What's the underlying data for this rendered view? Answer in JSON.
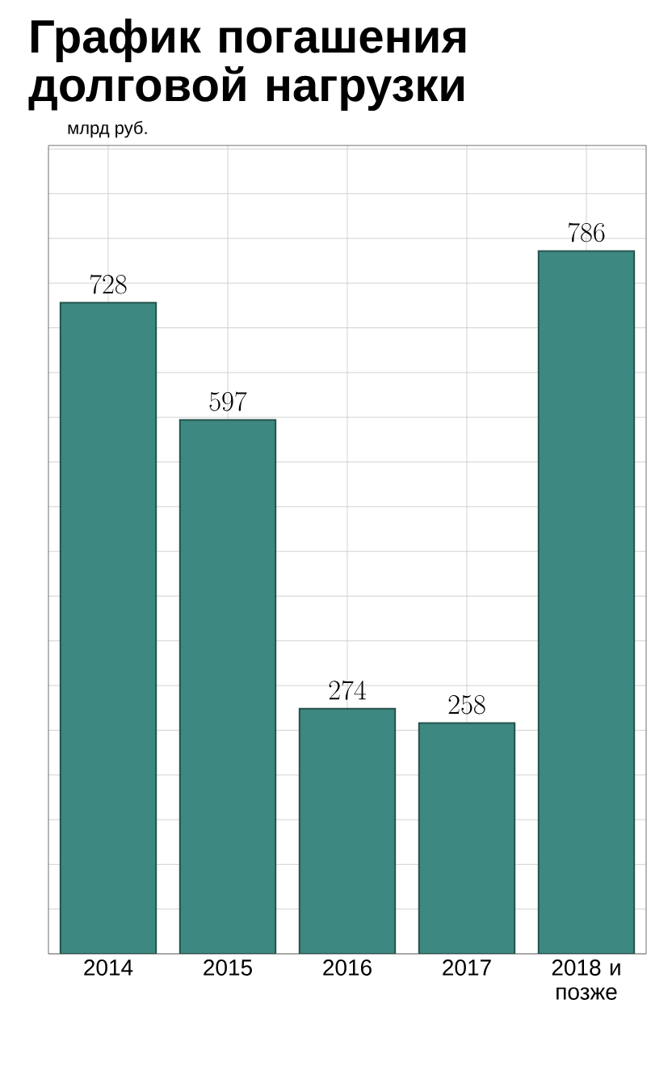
{
  "chart_data": {
    "type": "bar",
    "title": "График погашения долговой нагрузки",
    "subtitle": "млрд руб.",
    "categories": [
      "2014",
      "2015",
      "2016",
      "2017",
      "2018 и позже"
    ],
    "values": [
      728,
      597,
      274,
      258,
      786
    ],
    "color": "#3d8880",
    "data_labels": true,
    "grid": true
  }
}
